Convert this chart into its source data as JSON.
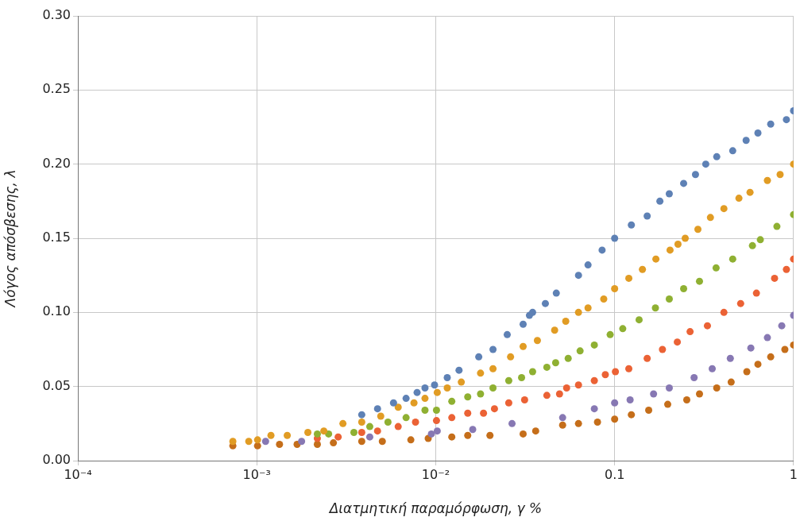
{
  "chart_data": {
    "type": "scatter",
    "xlabel": "Διατμητική παραμόρφωση, γ %",
    "ylabel": "Λόγος απόσβεσης, λ",
    "log": "x",
    "grid": true,
    "legend": false,
    "marker": "circle",
    "xlim": [
      0.0001,
      1
    ],
    "xticks": [
      {
        "value": 0.0001,
        "label": "10⁻⁴"
      },
      {
        "value": 0.001,
        "label": "10⁻³"
      },
      {
        "value": 0.01,
        "label": "10⁻²"
      },
      {
        "value": 0.1,
        "label": "0.1"
      },
      {
        "value": 1,
        "label": "1"
      }
    ],
    "ylim": [
      0,
      0.3
    ],
    "yticks": [
      {
        "value": 0,
        "label": "0.00"
      },
      {
        "value": 0.05,
        "label": "0.05"
      },
      {
        "value": 0.1,
        "label": "0.10"
      },
      {
        "value": 0.15,
        "label": "0.15"
      },
      {
        "value": 0.2,
        "label": "0.20"
      },
      {
        "value": 0.25,
        "label": "0.25"
      },
      {
        "value": 0.3,
        "label": "0.30"
      }
    ],
    "series": [
      {
        "color": "#5e81b5",
        "x": [
          0.00386,
          0.00473,
          0.00581,
          0.00683,
          0.00787,
          0.00871,
          0.00985,
          0.0116,
          0.0135,
          0.0174,
          0.0209,
          0.0251,
          0.0308,
          0.0334,
          0.0348,
          0.041,
          0.0472,
          0.0628,
          0.071,
          0.0851,
          0.1,
          0.124,
          0.152,
          0.179,
          0.202,
          0.243,
          0.283,
          0.323,
          0.372,
          0.457,
          0.543,
          0.632,
          0.745,
          0.912,
          1.0
        ],
        "values": [
          0.031,
          0.035,
          0.039,
          0.042,
          0.046,
          0.049,
          0.051,
          0.056,
          0.061,
          0.07,
          0.075,
          0.085,
          0.092,
          0.098,
          0.1,
          0.106,
          0.113,
          0.125,
          0.132,
          0.142,
          0.15,
          0.159,
          0.165,
          0.175,
          0.18,
          0.187,
          0.193,
          0.2,
          0.205,
          0.209,
          0.216,
          0.221,
          0.227,
          0.23,
          0.236
        ]
      },
      {
        "color": "#e19c24",
        "x": [
          0.000735,
          0.000902,
          0.00101,
          0.0012,
          0.00148,
          0.00193,
          0.00237,
          0.00303,
          0.00386,
          0.00493,
          0.00617,
          0.00756,
          0.00871,
          0.0102,
          0.0116,
          0.0139,
          0.0178,
          0.0209,
          0.0262,
          0.0308,
          0.037,
          0.0462,
          0.0533,
          0.0628,
          0.071,
          0.0869,
          0.1,
          0.12,
          0.143,
          0.17,
          0.204,
          0.226,
          0.248,
          0.292,
          0.343,
          0.408,
          0.495,
          0.571,
          0.714,
          0.841,
          1.0
        ],
        "values": [
          0.013,
          0.013,
          0.014,
          0.017,
          0.017,
          0.019,
          0.02,
          0.025,
          0.026,
          0.03,
          0.036,
          0.039,
          0.042,
          0.046,
          0.049,
          0.053,
          0.059,
          0.062,
          0.07,
          0.077,
          0.081,
          0.088,
          0.094,
          0.1,
          0.103,
          0.109,
          0.116,
          0.123,
          0.129,
          0.136,
          0.142,
          0.146,
          0.15,
          0.156,
          0.164,
          0.17,
          0.177,
          0.181,
          0.189,
          0.193,
          0.2
        ]
      },
      {
        "color": "#8fb032",
        "x": [
          0.00218,
          0.00252,
          0.00349,
          0.00428,
          0.00541,
          0.00683,
          0.00871,
          0.0101,
          0.0123,
          0.0151,
          0.0178,
          0.0209,
          0.0256,
          0.0302,
          0.0348,
          0.0418,
          0.0468,
          0.055,
          0.0641,
          0.077,
          0.0944,
          0.111,
          0.137,
          0.169,
          0.202,
          0.243,
          0.298,
          0.369,
          0.457,
          0.589,
          0.652,
          0.807,
          1.0
        ],
        "values": [
          0.018,
          0.018,
          0.019,
          0.023,
          0.026,
          0.029,
          0.034,
          0.034,
          0.04,
          0.043,
          0.045,
          0.049,
          0.054,
          0.056,
          0.06,
          0.063,
          0.066,
          0.069,
          0.074,
          0.078,
          0.085,
          0.089,
          0.095,
          0.103,
          0.109,
          0.116,
          0.121,
          0.13,
          0.136,
          0.145,
          0.149,
          0.158,
          0.166
        ]
      },
      {
        "color": "#eb6235",
        "x": [
          0.00218,
          0.00285,
          0.00386,
          0.00473,
          0.00617,
          0.00771,
          0.0101,
          0.0123,
          0.0151,
          0.0185,
          0.0213,
          0.0256,
          0.0314,
          0.0418,
          0.0492,
          0.0539,
          0.0628,
          0.077,
          0.0887,
          0.101,
          0.12,
          0.152,
          0.185,
          0.224,
          0.264,
          0.33,
          0.408,
          0.506,
          0.62,
          0.783,
          0.912,
          1.0
        ],
        "values": [
          0.015,
          0.016,
          0.019,
          0.02,
          0.023,
          0.026,
          0.027,
          0.029,
          0.032,
          0.032,
          0.035,
          0.039,
          0.041,
          0.044,
          0.045,
          0.049,
          0.051,
          0.054,
          0.058,
          0.06,
          0.062,
          0.069,
          0.075,
          0.08,
          0.087,
          0.091,
          0.1,
          0.106,
          0.113,
          0.123,
          0.129,
          0.136
        ]
      },
      {
        "color": "#8778b3",
        "x": [
          0.00112,
          0.00178,
          0.00428,
          0.00946,
          0.0102,
          0.0161,
          0.0267,
          0.0512,
          0.077,
          0.1,
          0.122,
          0.165,
          0.202,
          0.278,
          0.351,
          0.443,
          0.577,
          0.714,
          0.859,
          1.0
        ],
        "values": [
          0.013,
          0.013,
          0.016,
          0.018,
          0.02,
          0.021,
          0.025,
          0.029,
          0.035,
          0.039,
          0.041,
          0.045,
          0.049,
          0.056,
          0.062,
          0.069,
          0.076,
          0.083,
          0.091,
          0.098
        ]
      },
      {
        "color": "#c56e1a",
        "x": [
          0.000735,
          0.00101,
          0.00134,
          0.00168,
          0.00218,
          0.00268,
          0.00386,
          0.00503,
          0.00726,
          0.00908,
          0.0123,
          0.0151,
          0.0201,
          0.0308,
          0.0362,
          0.0512,
          0.0628,
          0.0802,
          0.1,
          0.124,
          0.155,
          0.198,
          0.253,
          0.298,
          0.372,
          0.448,
          0.548,
          0.632,
          0.745,
          0.894,
          1.0
        ],
        "values": [
          0.01,
          0.01,
          0.011,
          0.011,
          0.011,
          0.012,
          0.013,
          0.013,
          0.014,
          0.015,
          0.016,
          0.017,
          0.017,
          0.018,
          0.02,
          0.024,
          0.025,
          0.026,
          0.028,
          0.031,
          0.034,
          0.038,
          0.041,
          0.045,
          0.049,
          0.053,
          0.06,
          0.065,
          0.07,
          0.075,
          0.078
        ]
      }
    ]
  }
}
